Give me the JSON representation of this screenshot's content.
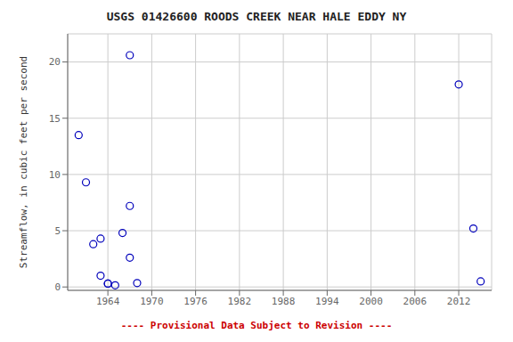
{
  "chart_data": {
    "type": "scatter",
    "title": "USGS 01426600 ROODS CREEK NEAR HALE EDDY NY",
    "y_label": "Streamflow, in cubic feet per second",
    "annotations": [
      {
        "text": "---- Provisional Data Subject to Revision ----",
        "color": "#cc0000"
      }
    ],
    "x": [
      1960,
      1961,
      1962,
      1963,
      1963,
      1964,
      1964,
      1965,
      1966,
      1967,
      1967,
      1967,
      1968,
      2012,
      2014,
      2015
    ],
    "values": [
      13.5,
      9.3,
      3.8,
      4.3,
      1.0,
      0.3,
      0.3,
      0.15,
      4.8,
      20.6,
      7.2,
      2.6,
      0.35,
      18.0,
      5.2,
      0.5
    ],
    "color": "#0000bb",
    "marker": "circle",
    "xlim": [
      1958.5,
      2016.5
    ],
    "ylim": [
      -0.3,
      22.5
    ],
    "xticks": [
      1964,
      1970,
      1976,
      1982,
      1988,
      1994,
      2000,
      2006,
      2012
    ],
    "yticks": [
      0,
      5,
      10,
      15,
      20
    ],
    "grid": true
  }
}
